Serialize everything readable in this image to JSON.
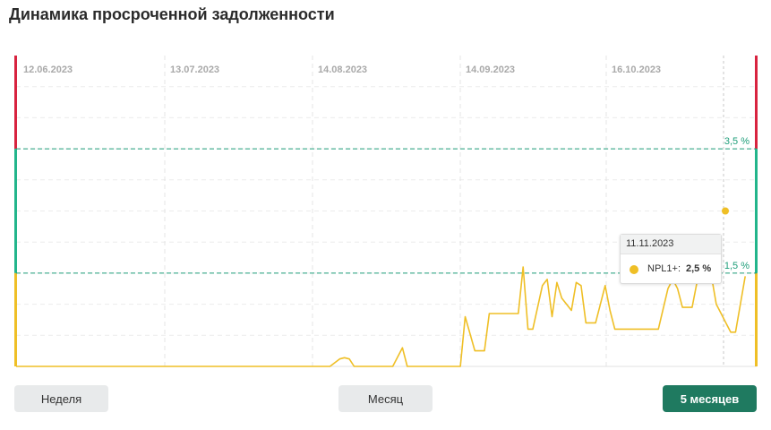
{
  "page": {
    "title": "Динамика просроченной задолженности"
  },
  "chart_data": {
    "type": "line",
    "x_tick_labels": [
      "12.06.2023",
      "13.07.2023",
      "14.08.2023",
      "14.09.2023",
      "16.10.2023"
    ],
    "x_range_days": [
      0,
      153
    ],
    "ylim": [
      0,
      5
    ],
    "thresholds": [
      {
        "value": 3.5,
        "label": "3,5 %",
        "color": "#1f9e7a"
      },
      {
        "value": 1.5,
        "label": "1,5 %",
        "color": "#1f9e7a"
      }
    ],
    "zone_colors": {
      "high": "#d8233f",
      "mid": "#22b58b",
      "low": "#efbf26"
    },
    "series": [
      {
        "name": "NPL1+",
        "color": "#efbf26",
        "points": [
          [
            0,
            0
          ],
          [
            5,
            0
          ],
          [
            10,
            0
          ],
          [
            15,
            0
          ],
          [
            20,
            0
          ],
          [
            25,
            0
          ],
          [
            30,
            0
          ],
          [
            35,
            0
          ],
          [
            40,
            0
          ],
          [
            45,
            0
          ],
          [
            50,
            0
          ],
          [
            55,
            0
          ],
          [
            60,
            0
          ],
          [
            65,
            0
          ],
          [
            67,
            0.12
          ],
          [
            68,
            0.14
          ],
          [
            69,
            0.12
          ],
          [
            70,
            0
          ],
          [
            73,
            0
          ],
          [
            78,
            0
          ],
          [
            80,
            0.3
          ],
          [
            81,
            0
          ],
          [
            85,
            0
          ],
          [
            90,
            0
          ],
          [
            92,
            0
          ],
          [
            93,
            0.8
          ],
          [
            95,
            0.25
          ],
          [
            97,
            0.25
          ],
          [
            98,
            0.85
          ],
          [
            101,
            0.85
          ],
          [
            104,
            0.85
          ],
          [
            105,
            1.6
          ],
          [
            106,
            0.6
          ],
          [
            107,
            0.6
          ],
          [
            109,
            1.3
          ],
          [
            110,
            1.4
          ],
          [
            111,
            0.8
          ],
          [
            112,
            1.35
          ],
          [
            113,
            1.1
          ],
          [
            115,
            0.9
          ],
          [
            116,
            1.35
          ],
          [
            117,
            1.3
          ],
          [
            118,
            0.7
          ],
          [
            120,
            0.7
          ],
          [
            122,
            1.3
          ],
          [
            123,
            0.9
          ],
          [
            124,
            0.6
          ],
          [
            126,
            0.6
          ],
          [
            128,
            0.6
          ],
          [
            130,
            0.6
          ],
          [
            133,
            0.6
          ],
          [
            135,
            1.25
          ],
          [
            136,
            1.4
          ],
          [
            137,
            1.25
          ],
          [
            138,
            0.95
          ],
          [
            140,
            0.95
          ],
          [
            141,
            1.35
          ],
          [
            142,
            1.55
          ],
          [
            143,
            1.75
          ],
          [
            144,
            1.45
          ],
          [
            145,
            1.0
          ],
          [
            146,
            0.85
          ],
          [
            147,
            0.7
          ],
          [
            148,
            0.55
          ],
          [
            149,
            0.55
          ],
          [
            150,
            1.0
          ],
          [
            151,
            1.45
          ]
        ]
      }
    ],
    "tooltip": {
      "date": "11.11.2023",
      "series": "NPL1+:",
      "value": "2,5 %"
    }
  },
  "buttons": {
    "week": "Неделя",
    "month": "Месяц",
    "five_months": "5 месяцев"
  }
}
